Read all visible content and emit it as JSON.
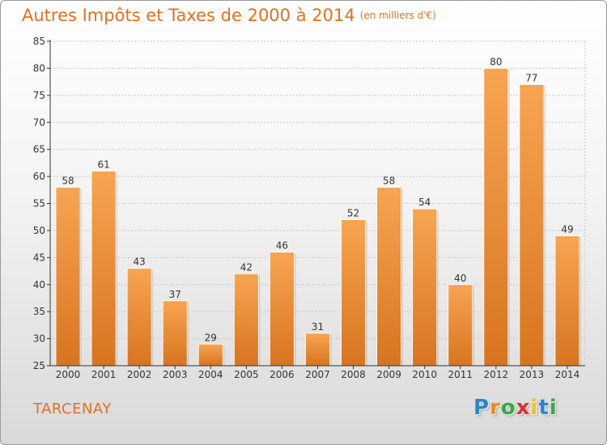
{
  "title": "Autres Impôts et Taxes de 2000 à 2014",
  "subtitle": "(en milliers d'€)",
  "location": "TARCENAY",
  "logo": {
    "letters": [
      "P",
      "r",
      "o",
      "x",
      "i",
      "t",
      "i"
    ],
    "colors": [
      "#2a86c8",
      "#f08a1c",
      "#3aa845",
      "#e0302a",
      "#f0c020",
      "#2a86c8",
      "#3aa845"
    ]
  },
  "colors": {
    "accent": "#e2701e",
    "bar_top": "#f7a552",
    "bar_bottom": "#d8741f"
  },
  "chart_data": {
    "type": "bar",
    "categories": [
      "2000",
      "2001",
      "2002",
      "2003",
      "2004",
      "2005",
      "2006",
      "2007",
      "2008",
      "2009",
      "2010",
      "2011",
      "2012",
      "2013",
      "2014"
    ],
    "values": [
      58,
      61,
      43,
      37,
      29,
      42,
      46,
      31,
      52,
      58,
      54,
      40,
      80,
      77,
      49
    ],
    "ylim": [
      25,
      85
    ],
    "yticks": [
      25,
      30,
      35,
      40,
      45,
      50,
      55,
      60,
      65,
      70,
      75,
      80,
      85
    ],
    "grid": true
  }
}
